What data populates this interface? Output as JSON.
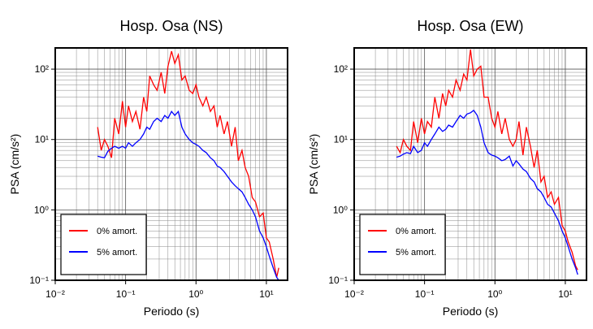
{
  "chart_data": [
    {
      "type": "line",
      "title": "Hosp. Osa (NS)",
      "x_label": "Periodo (s)",
      "y_label": "PSA (cm/s²)",
      "log_x": true,
      "log_y": true,
      "grid": true,
      "legend": "lower left",
      "xlim": [
        0.01,
        20
      ],
      "ylim": [
        0.1,
        200
      ],
      "xticks": [
        {
          "value": 0.01,
          "label": "10⁻²"
        },
        {
          "value": 0.1,
          "label": "10⁻¹"
        },
        {
          "value": 1,
          "label": "10⁰"
        },
        {
          "value": 10,
          "label": "10¹"
        }
      ],
      "yticks": [
        {
          "value": 0.1,
          "label": "10⁻¹"
        },
        {
          "value": 1,
          "label": "10⁰"
        },
        {
          "value": 10,
          "label": "10¹"
        },
        {
          "value": 100,
          "label": "10²"
        }
      ],
      "x": [
        0.04,
        0.045,
        0.05,
        0.056,
        0.063,
        0.07,
        0.08,
        0.09,
        0.1,
        0.11,
        0.125,
        0.14,
        0.16,
        0.18,
        0.2,
        0.22,
        0.25,
        0.28,
        0.32,
        0.36,
        0.4,
        0.45,
        0.5,
        0.56,
        0.63,
        0.7,
        0.8,
        0.9,
        1.0,
        1.1,
        1.25,
        1.4,
        1.6,
        1.8,
        2.0,
        2.2,
        2.5,
        2.8,
        3.2,
        3.6,
        4.0,
        4.5,
        5.0,
        5.6,
        6.3,
        7.0,
        8.0,
        9.0,
        10,
        11,
        12.5,
        14,
        15
      ],
      "series": [
        {
          "name": "0% amort.",
          "color": "#ff0000",
          "values": [
            15,
            7,
            10,
            8,
            5.5,
            20,
            12,
            35,
            15,
            30,
            18,
            25,
            14,
            40,
            25,
            80,
            60,
            50,
            90,
            45,
            110,
            180,
            120,
            160,
            70,
            80,
            50,
            45,
            60,
            40,
            30,
            40,
            25,
            30,
            15,
            22,
            12,
            18,
            8,
            15,
            5,
            7,
            4,
            3,
            1.5,
            1.3,
            0.8,
            0.9,
            0.4,
            0.35,
            0.2,
            0.11,
            0.15
          ]
        },
        {
          "name": "5% amort.",
          "color": "#0000ff",
          "values": [
            5.8,
            5.6,
            5.5,
            6.8,
            7.5,
            8,
            7.5,
            8,
            7.5,
            9,
            8,
            9,
            10,
            12,
            15,
            14,
            18,
            20,
            18,
            22,
            20,
            25,
            22,
            25,
            15,
            12,
            10,
            9,
            8.5,
            8,
            7,
            6.5,
            5.5,
            5,
            4.2,
            4,
            3.5,
            3,
            2.5,
            2.2,
            2,
            1.8,
            1.5,
            1.2,
            1,
            0.8,
            0.5,
            0.4,
            0.3,
            0.22,
            0.15,
            0.11,
            0.1
          ]
        }
      ]
    },
    {
      "type": "line",
      "title": "Hosp. Osa (EW)",
      "x_label": "Periodo (s)",
      "y_label": "PSA (cm/s²)",
      "log_x": true,
      "log_y": true,
      "grid": true,
      "legend": "lower left",
      "xlim": [
        0.01,
        20
      ],
      "ylim": [
        0.1,
        200
      ],
      "xticks": [
        {
          "value": 0.01,
          "label": "10⁻²"
        },
        {
          "value": 0.1,
          "label": "10⁻¹"
        },
        {
          "value": 1,
          "label": "10⁰"
        },
        {
          "value": 10,
          "label": "10¹"
        }
      ],
      "yticks": [
        {
          "value": 0.1,
          "label": "10⁻¹"
        },
        {
          "value": 1,
          "label": "10⁰"
        },
        {
          "value": 10,
          "label": "10¹"
        },
        {
          "value": 100,
          "label": "10²"
        }
      ],
      "x": [
        0.04,
        0.045,
        0.05,
        0.056,
        0.063,
        0.07,
        0.08,
        0.09,
        0.1,
        0.11,
        0.125,
        0.14,
        0.16,
        0.18,
        0.2,
        0.22,
        0.25,
        0.28,
        0.32,
        0.36,
        0.4,
        0.45,
        0.5,
        0.56,
        0.63,
        0.7,
        0.8,
        0.9,
        1.0,
        1.1,
        1.25,
        1.4,
        1.6,
        1.8,
        2.0,
        2.2,
        2.5,
        2.8,
        3.2,
        3.6,
        4.0,
        4.5,
        5.0,
        5.6,
        6.3,
        7.0,
        8.0,
        9.0,
        10,
        11,
        12.5,
        14,
        15
      ],
      "series": [
        {
          "name": "0% amort.",
          "color": "#ff0000",
          "values": [
            8,
            6.5,
            10,
            8,
            7,
            18,
            9,
            20,
            12,
            18,
            15,
            40,
            20,
            45,
            30,
            50,
            40,
            70,
            50,
            85,
            70,
            190,
            80,
            100,
            110,
            40,
            40,
            20,
            15,
            25,
            12,
            20,
            10,
            8,
            10,
            18,
            6,
            15,
            8,
            4,
            7,
            2.5,
            3,
            1.5,
            1.8,
            1.2,
            1.5,
            0.6,
            0.5,
            0.35,
            0.25,
            0.16,
            0.14
          ]
        },
        {
          "name": "5% amort.",
          "color": "#0000ff",
          "values": [
            5.6,
            5.8,
            6.2,
            6.5,
            6.3,
            8,
            6.5,
            7,
            9,
            8,
            10,
            12,
            15,
            13,
            14,
            16,
            15,
            18,
            22,
            20,
            23,
            24,
            26,
            22,
            15,
            9,
            6.5,
            6,
            5.8,
            5.5,
            5,
            5.2,
            5.8,
            4.2,
            5,
            4.5,
            3.8,
            3.5,
            2.8,
            2.5,
            2,
            1.8,
            1.5,
            1.2,
            1.1,
            0.9,
            0.7,
            0.5,
            0.4,
            0.3,
            0.2,
            0.15,
            0.12
          ]
        }
      ]
    }
  ]
}
